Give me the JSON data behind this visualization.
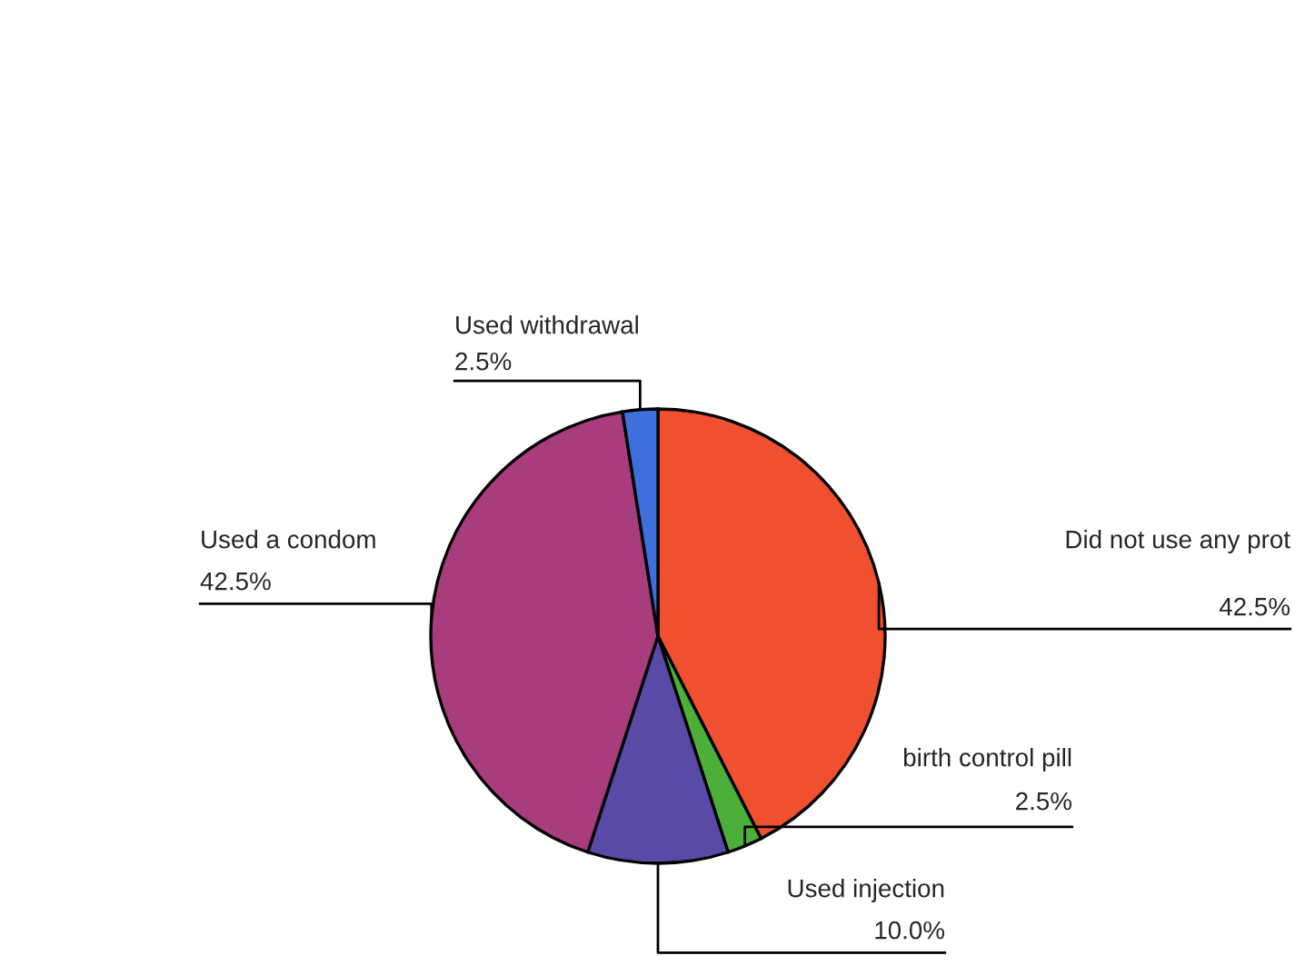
{
  "chart_data": {
    "type": "pie",
    "categories": [
      "Did not use any prot",
      "birth control pill",
      "Used injection",
      "Used a condom",
      "Used withdrawal"
    ],
    "values": [
      42.5,
      2.5,
      10.0,
      42.5,
      2.5
    ],
    "value_labels": [
      "42.5%",
      "2.5%",
      "10.0%",
      "42.5%",
      "2.5%"
    ],
    "colors": [
      "#f0502f",
      "#4caf3a",
      "#5a4aa8",
      "#a83c7c",
      "#3f6fdc"
    ]
  }
}
